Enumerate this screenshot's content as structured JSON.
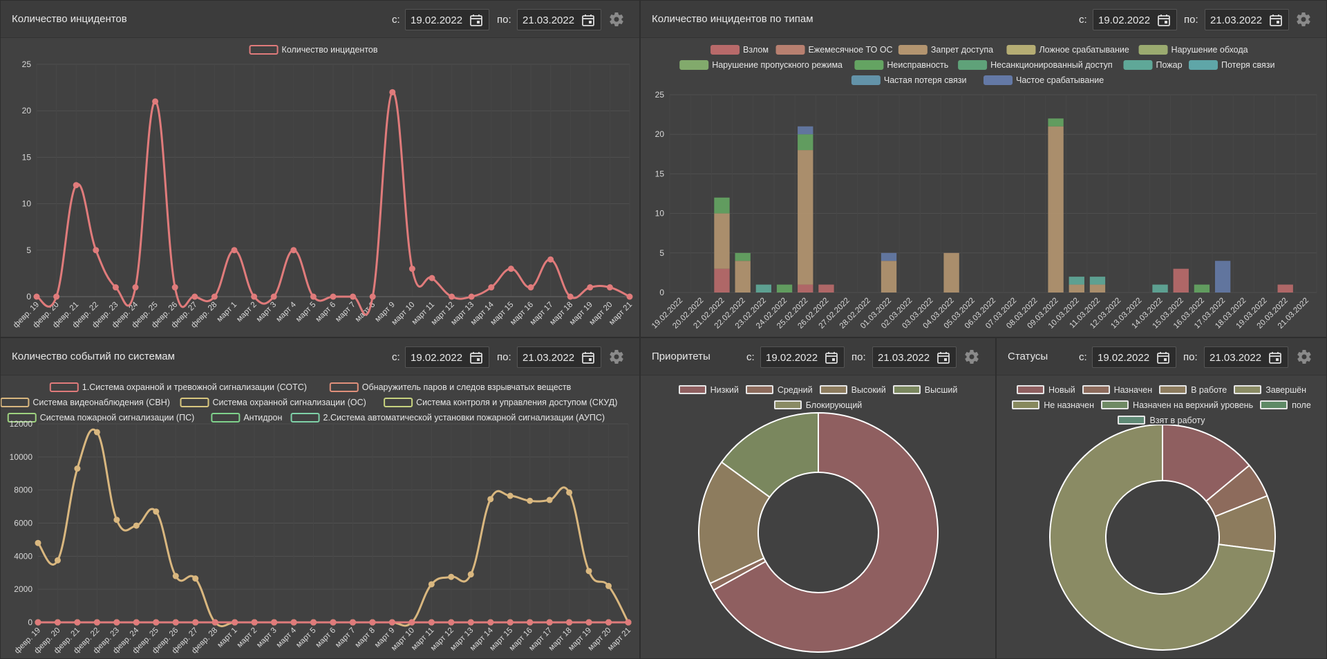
{
  "colors": {
    "incident_line": "#e07b7b",
    "systems_line": "#d9b77f",
    "grid": "#505050",
    "axis_text": "#d9d9d9"
  },
  "common": {
    "from_label": "с:",
    "to_label": "по:",
    "from_date": "19.02.2022",
    "to_date": "21.03.2022",
    "calendar_icon": "calendar-icon",
    "settings_icon": "gear-icon"
  },
  "panels": {
    "incidents": {
      "title": "Количество инцидентов"
    },
    "by_type": {
      "title": "Количество инцидентов по типам"
    },
    "systems": {
      "title": "Количество событий по системам"
    },
    "priorities": {
      "title": "Приоритеты"
    },
    "statuses": {
      "title": "Статусы"
    }
  },
  "chart_data": [
    {
      "id": "incidents",
      "type": "line",
      "title": "",
      "categories": [
        "февр. 19",
        "февр. 20",
        "февр. 21",
        "февр. 22",
        "февр. 23",
        "февр. 24",
        "февр. 25",
        "февр. 26",
        "февр. 27",
        "февр. 28",
        "март 1",
        "март 2",
        "март 3",
        "март 4",
        "март 5",
        "март 6",
        "март 7",
        "март 8",
        "март 9",
        "март 10",
        "март 11",
        "март 12",
        "март 13",
        "март 14",
        "март 15",
        "март 16",
        "март 17",
        "март 18",
        "март 19",
        "март 20",
        "март 21"
      ],
      "series": [
        {
          "name": "Количество инцидентов",
          "color": "#e07b7b",
          "values": [
            0,
            0,
            12,
            5,
            1,
            1,
            21,
            1,
            0,
            0,
            5,
            0,
            0,
            5,
            0,
            0,
            0,
            0,
            22,
            3,
            2,
            0,
            0,
            1,
            3,
            1,
            4,
            0,
            1,
            1,
            0
          ]
        }
      ],
      "ylim": [
        0,
        25
      ],
      "yticks": [
        0,
        5,
        10,
        15,
        20,
        25
      ],
      "legend": "top"
    },
    {
      "id": "by_type",
      "type": "bar",
      "stacked": true,
      "categories": [
        "19.02.2022",
        "20.02.2022",
        "21.02.2022",
        "22.02.2022",
        "23.02.2022",
        "24.02.2022",
        "25.02.2022",
        "26.02.2022",
        "27.02.2022",
        "28.02.2022",
        "01.03.2022",
        "02.03.2022",
        "03.03.2022",
        "04.03.2022",
        "05.03.2022",
        "06.03.2022",
        "07.03.2022",
        "08.03.2022",
        "09.03.2022",
        "10.03.2022",
        "11.03.2022",
        "12.03.2022",
        "13.03.2022",
        "14.03.2022",
        "15.03.2022",
        "16.03.2022",
        "17.03.2022",
        "18.03.2022",
        "19.03.2022",
        "20.03.2022",
        "21.03.2022"
      ],
      "series": [
        {
          "name": "Взлом",
          "color": "#b86a6a",
          "values": [
            0,
            0,
            3,
            0,
            0,
            0,
            1,
            1,
            0,
            0,
            0,
            0,
            0,
            0,
            0,
            0,
            0,
            0,
            0,
            0,
            0,
            0,
            0,
            0,
            3,
            0,
            0,
            0,
            0,
            1,
            0
          ]
        },
        {
          "name": "Ежемесячное ТО ОС",
          "color": "#b88070",
          "values": [
            0,
            0,
            0,
            0,
            0,
            0,
            0,
            0,
            0,
            0,
            0,
            0,
            0,
            0,
            0,
            0,
            0,
            0,
            0,
            0,
            0,
            0,
            0,
            0,
            0,
            0,
            0,
            0,
            0,
            0,
            0
          ]
        },
        {
          "name": "Запрет доступа",
          "color": "#b39570",
          "values": [
            0,
            0,
            7,
            4,
            0,
            0,
            17,
            0,
            0,
            0,
            4,
            0,
            0,
            5,
            0,
            0,
            0,
            0,
            21,
            1,
            1,
            0,
            0,
            0,
            0,
            0,
            0,
            0,
            0,
            0,
            0
          ]
        },
        {
          "name": "Ложное срабатывание",
          "color": "#b5ad74",
          "values": [
            0,
            0,
            0,
            0,
            0,
            0,
            0,
            0,
            0,
            0,
            0,
            0,
            0,
            0,
            0,
            0,
            0,
            0,
            0,
            0,
            0,
            0,
            0,
            0,
            0,
            0,
            0,
            0,
            0,
            0,
            0
          ]
        },
        {
          "name": "Нарушение обхода",
          "color": "#9bab70",
          "values": [
            0,
            0,
            0,
            0,
            0,
            0,
            0,
            0,
            0,
            0,
            0,
            0,
            0,
            0,
            0,
            0,
            0,
            0,
            0,
            0,
            0,
            0,
            0,
            0,
            0,
            0,
            0,
            0,
            0,
            0,
            0
          ]
        },
        {
          "name": "Нарушение пропускного режима",
          "color": "#82aa6c",
          "values": [
            0,
            0,
            0,
            0,
            0,
            0,
            0,
            0,
            0,
            0,
            0,
            0,
            0,
            0,
            0,
            0,
            0,
            0,
            0,
            0,
            0,
            0,
            0,
            0,
            0,
            0,
            0,
            0,
            0,
            0,
            0
          ]
        },
        {
          "name": "Неисправность",
          "color": "#64a462",
          "values": [
            0,
            0,
            2,
            1,
            0,
            1,
            2,
            0,
            0,
            0,
            0,
            0,
            0,
            0,
            0,
            0,
            0,
            0,
            1,
            0,
            0,
            0,
            0,
            0,
            0,
            1,
            0,
            0,
            0,
            0,
            0
          ]
        },
        {
          "name": "Несанкционированный доступ",
          "color": "#5fa279",
          "values": [
            0,
            0,
            0,
            0,
            0,
            0,
            0,
            0,
            0,
            0,
            0,
            0,
            0,
            0,
            0,
            0,
            0,
            0,
            0,
            0,
            0,
            0,
            0,
            0,
            0,
            0,
            0,
            0,
            0,
            0,
            0
          ]
        },
        {
          "name": "Пожар",
          "color": "#5fa898",
          "values": [
            0,
            0,
            0,
            0,
            1,
            0,
            0,
            0,
            0,
            0,
            0,
            0,
            0,
            0,
            0,
            0,
            0,
            0,
            0,
            1,
            1,
            0,
            0,
            1,
            0,
            0,
            0,
            0,
            0,
            0,
            0
          ]
        },
        {
          "name": "Потеря связи",
          "color": "#5fa6a8",
          "values": [
            0,
            0,
            0,
            0,
            0,
            0,
            0,
            0,
            0,
            0,
            0,
            0,
            0,
            0,
            0,
            0,
            0,
            0,
            0,
            0,
            0,
            0,
            0,
            0,
            0,
            0,
            0,
            0,
            0,
            0,
            0
          ]
        },
        {
          "name": "Частая потеря связи",
          "color": "#6393a9",
          "values": [
            0,
            0,
            0,
            0,
            0,
            0,
            0,
            0,
            0,
            0,
            0,
            0,
            0,
            0,
            0,
            0,
            0,
            0,
            0,
            0,
            0,
            0,
            0,
            0,
            0,
            0,
            0,
            0,
            0,
            0,
            0
          ]
        },
        {
          "name": "Частое срабатывание",
          "color": "#6479a6",
          "values": [
            0,
            0,
            0,
            0,
            0,
            0,
            1,
            0,
            0,
            0,
            1,
            0,
            0,
            0,
            0,
            0,
            0,
            0,
            0,
            0,
            0,
            0,
            0,
            0,
            0,
            0,
            4,
            0,
            0,
            0,
            0
          ]
        }
      ],
      "ylim": [
        0,
        25
      ],
      "yticks": [
        0,
        5,
        10,
        15,
        20,
        25
      ],
      "legend": "top"
    },
    {
      "id": "systems",
      "type": "line",
      "categories": [
        "февр. 19",
        "февр. 20",
        "февр. 21",
        "февр. 22",
        "февр. 23",
        "февр. 24",
        "февр. 25",
        "февр. 26",
        "февр. 27",
        "февр. 28",
        "март 1",
        "март 2",
        "март 3",
        "март 4",
        "март 5",
        "март 6",
        "март 7",
        "март 8",
        "март 9",
        "март 10",
        "март 11",
        "март 12",
        "март 13",
        "март 14",
        "март 15",
        "март 16",
        "март 17",
        "март 18",
        "март 19",
        "март 20",
        "март 21"
      ],
      "series": [
        {
          "name": "1.Система охранной и тревожной сигнализации (СОТС)",
          "color": "#e07b7b",
          "values": [
            0,
            0,
            0,
            0,
            0,
            0,
            0,
            0,
            0,
            0,
            0,
            0,
            0,
            0,
            0,
            0,
            0,
            0,
            0,
            0,
            0,
            0,
            0,
            0,
            0,
            0,
            0,
            0,
            0,
            0,
            0
          ]
        },
        {
          "name": "Обнаружитель паров и следов взрывчатых веществ",
          "color": "#e0907b",
          "values": [
            0,
            0,
            0,
            0,
            0,
            0,
            0,
            0,
            0,
            0,
            0,
            0,
            0,
            0,
            0,
            0,
            0,
            0,
            0,
            0,
            0,
            0,
            0,
            0,
            0,
            0,
            0,
            0,
            0,
            0,
            0
          ]
        },
        {
          "name": "Система видеонаблюдения (СВН)",
          "color": "#d9b77f",
          "values": [
            4800,
            3750,
            9300,
            11500,
            6200,
            5850,
            6700,
            2800,
            2650,
            0,
            0,
            0,
            0,
            0,
            0,
            0,
            0,
            0,
            0,
            0,
            2300,
            2750,
            2900,
            7450,
            7650,
            7350,
            7400,
            7850,
            3100,
            2200,
            0
          ]
        },
        {
          "name": "Система охранной сигнализации (ОС)",
          "color": "#d9c77f",
          "values": [
            0,
            0,
            0,
            0,
            0,
            0,
            0,
            0,
            0,
            0,
            0,
            0,
            0,
            0,
            0,
            0,
            0,
            0,
            0,
            0,
            0,
            0,
            0,
            0,
            0,
            0,
            0,
            0,
            0,
            0,
            0
          ]
        },
        {
          "name": "Система контроля и управления доступом (СКУД)",
          "color": "#c7d27f",
          "values": [
            0,
            0,
            0,
            0,
            0,
            0,
            0,
            0,
            0,
            0,
            0,
            0,
            0,
            0,
            0,
            0,
            0,
            0,
            0,
            0,
            0,
            0,
            0,
            0,
            0,
            0,
            0,
            0,
            0,
            0,
            0
          ]
        },
        {
          "name": "Система пожарной сигнализации (ПС)",
          "color": "#9ed27f",
          "values": [
            0,
            0,
            0,
            0,
            0,
            0,
            0,
            0,
            0,
            0,
            0,
            0,
            0,
            0,
            0,
            0,
            0,
            0,
            0,
            0,
            0,
            0,
            0,
            0,
            0,
            0,
            0,
            0,
            0,
            0,
            0
          ]
        },
        {
          "name": "Антидрон",
          "color": "#7fd28c",
          "values": [
            0,
            0,
            0,
            0,
            0,
            0,
            0,
            0,
            0,
            0,
            0,
            0,
            0,
            0,
            0,
            0,
            0,
            0,
            0,
            0,
            0,
            0,
            0,
            0,
            0,
            0,
            0,
            0,
            0,
            0,
            0
          ]
        },
        {
          "name": "2.Система автоматической установки пожарной сигнализации (АУПС)",
          "color": "#7fd2a8",
          "values": [
            0,
            0,
            0,
            0,
            0,
            0,
            0,
            0,
            0,
            0,
            0,
            0,
            0,
            0,
            0,
            0,
            0,
            0,
            0,
            0,
            0,
            0,
            0,
            0,
            0,
            0,
            0,
            0,
            0,
            0,
            0
          ]
        }
      ],
      "ylim": [
        0,
        12000
      ],
      "yticks": [
        0,
        2000,
        4000,
        6000,
        8000,
        10000,
        12000
      ],
      "legend": "top"
    },
    {
      "id": "priorities",
      "type": "pie",
      "donut": true,
      "labels": [
        "Низкий",
        "Средний",
        "Высокий",
        "Высший",
        "Блокирующий"
      ],
      "colors": [
        "#8f5f60",
        "#8d6b5c",
        "#8d7c5e",
        "#7a875e",
        "#8a8b64"
      ],
      "values": [
        67,
        1,
        17,
        15,
        0
      ],
      "legend": "top"
    },
    {
      "id": "statuses",
      "type": "pie",
      "donut": true,
      "labels": [
        "Новый",
        "Назначен",
        "В работе",
        "Завершён",
        "Не назначен",
        "Назначен на верхний уровень",
        "поле",
        "Взят в работу"
      ],
      "colors": [
        "#8f5f60",
        "#8d6b5c",
        "#8d7c5e",
        "#8a8b64",
        "#87895e",
        "#6f8a64",
        "#5f8a66",
        "#5f8a76"
      ],
      "values": [
        14,
        5,
        8,
        73,
        0,
        0,
        0,
        0
      ],
      "legend": "top"
    }
  ]
}
